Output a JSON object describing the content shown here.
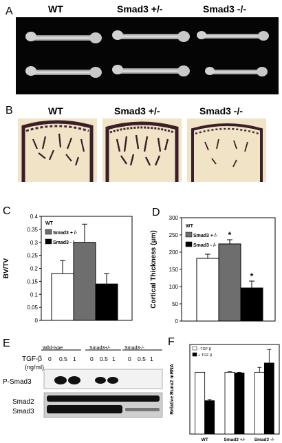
{
  "panel_a": {
    "label": "A",
    "headers": [
      "WT",
      "Smad3 +/-",
      "Smad3 -/-"
    ]
  },
  "panel_b": {
    "label": "B",
    "headers": [
      "WT",
      "Smad3 +/-",
      "Smad3 -/-"
    ]
  },
  "chart_data": [
    {
      "panel": "C",
      "type": "bar",
      "categories": [
        "WT",
        "Smad3 +/-",
        "Smad3 -/-"
      ],
      "values": [
        0.18,
        0.3,
        0.14
      ],
      "errors": [
        0.05,
        0.07,
        0.04
      ],
      "colors": [
        "#ffffff",
        "#6e6e6e",
        "#000000"
      ],
      "ylabel": "BV/TV",
      "ylim": [
        0,
        0.4
      ],
      "yticks": [
        "0",
        "0.05",
        "0.1",
        "0.15",
        "0.2",
        "0.25",
        "0.3",
        "0.35",
        "0.4"
      ],
      "legend": [
        "WT",
        "Smad3 + /-",
        "Smad3 - /-"
      ]
    },
    {
      "panel": "D",
      "type": "bar",
      "categories": [
        "WT",
        "Smad3 +/-",
        "Smad3 -/-"
      ],
      "values": [
        182,
        224,
        96
      ],
      "errors": [
        12,
        12,
        20
      ],
      "significance": [
        "",
        "*",
        "*"
      ],
      "colors": [
        "#ffffff",
        "#6e6e6e",
        "#000000"
      ],
      "ylabel": "Cortical Thickness (μm)",
      "ylim": [
        0,
        300
      ],
      "yticks": [
        "0",
        "50",
        "100",
        "150",
        "200",
        "250",
        "300"
      ],
      "legend": [
        "WT",
        "Smad3 + /-",
        "Smad3 - /-"
      ]
    },
    {
      "panel": "F",
      "type": "bar",
      "categories": [
        "WT",
        "Smad3 +/-",
        "Smad3 -/-"
      ],
      "series": [
        {
          "name": "- TGF β",
          "values": [
            1.0,
            1.0,
            1.0
          ],
          "errors": [
            0.0,
            0.01,
            0.08
          ],
          "color": "#ffffff"
        },
        {
          "name": "+ TGF β",
          "values": [
            0.54,
            0.99,
            1.15
          ],
          "errors": [
            0.02,
            0.01,
            0.22
          ],
          "color": "#000000"
        }
      ],
      "ylabel": "Relative Runx2 mRNA",
      "ylim": [
        0,
        1.45
      ]
    }
  ],
  "panel_c": {
    "label": "C"
  },
  "panel_d": {
    "label": "D"
  },
  "panel_f": {
    "label": "F"
  },
  "panel_e": {
    "label": "E",
    "groups": [
      "Wild-type",
      "Smad3+/-",
      "Smad3-/-"
    ],
    "treatment_label": "TGF-β",
    "treatment_unit": "(ng/ml)",
    "doses": [
      "0",
      "0.5",
      "1"
    ],
    "row_labels": [
      "P-Smad3",
      "Smad2",
      "Smad3"
    ]
  }
}
